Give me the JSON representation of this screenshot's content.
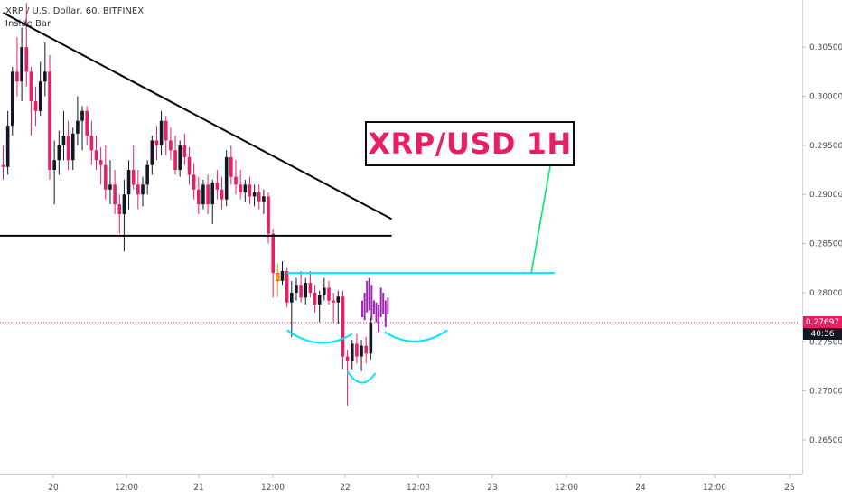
{
  "chart_data": {
    "type": "candlestick",
    "title": "XRP / U.S. Dollar, 60, BITFINEX",
    "indicator": "Inside Bar",
    "annotation": "XRP/USD 1H",
    "ylim": [
      0.2615,
      0.3098
    ],
    "price_ticks": [
      "0.26500",
      "0.27000",
      "0.27500",
      "0.28000",
      "0.28500",
      "0.29000",
      "0.29500",
      "0.30000",
      "0.30500"
    ],
    "time_ticks": [
      "20",
      "12:00",
      "21",
      "12:00",
      "22",
      "12:00",
      "23",
      "12:00",
      "24",
      "12:00",
      "25"
    ],
    "last_price": "0.27697",
    "countdown": "40:36",
    "colors": {
      "up": "#131722",
      "down": "#e91e63",
      "inside_bar": "#f59e0b",
      "projection": "#9c27b0",
      "neckline": "#00e5ff",
      "breakout_arrow": "#00e676",
      "trendline": "#000000",
      "last_price_tag": "#e91e63",
      "countdown_tag": "#131722"
    },
    "candles": [
      [
        0.293,
        0.295,
        0.2915,
        0.2928
      ],
      [
        0.2928,
        0.2985,
        0.292,
        0.297
      ],
      [
        0.297,
        0.303,
        0.296,
        0.3025
      ],
      [
        0.3025,
        0.306,
        0.3,
        0.3015
      ],
      [
        0.3015,
        0.307,
        0.2995,
        0.305
      ],
      [
        0.305,
        0.3095,
        0.301,
        0.3025
      ],
      [
        0.3025,
        0.303,
        0.296,
        0.2995
      ],
      [
        0.2995,
        0.301,
        0.297,
        0.2985
      ],
      [
        0.2985,
        0.3035,
        0.298,
        0.3015
      ],
      [
        0.3015,
        0.3055,
        0.3,
        0.3025
      ],
      [
        0.3025,
        0.3042,
        0.2915,
        0.2925
      ],
      [
        0.2925,
        0.2955,
        0.289,
        0.2935
      ],
      [
        0.2935,
        0.2965,
        0.292,
        0.295
      ],
      [
        0.295,
        0.2985,
        0.2935,
        0.296
      ],
      [
        0.296,
        0.2975,
        0.2925,
        0.2935
      ],
      [
        0.2935,
        0.2968,
        0.2925,
        0.2962
      ],
      [
        0.2962,
        0.3,
        0.295,
        0.2975
      ],
      [
        0.2975,
        0.299,
        0.2945,
        0.2985
      ],
      [
        0.2985,
        0.299,
        0.295,
        0.296
      ],
      [
        0.296,
        0.2975,
        0.293,
        0.2945
      ],
      [
        0.2945,
        0.296,
        0.2925,
        0.2935
      ],
      [
        0.2935,
        0.2948,
        0.291,
        0.293
      ],
      [
        0.293,
        0.295,
        0.2895,
        0.2905
      ],
      [
        0.2905,
        0.2935,
        0.289,
        0.291
      ],
      [
        0.291,
        0.2925,
        0.288,
        0.289
      ],
      [
        0.289,
        0.29,
        0.286,
        0.288
      ],
      [
        0.288,
        0.2915,
        0.2842,
        0.29
      ],
      [
        0.29,
        0.2935,
        0.2885,
        0.2925
      ],
      [
        0.2925,
        0.295,
        0.2905,
        0.291
      ],
      [
        0.291,
        0.2925,
        0.2885,
        0.29
      ],
      [
        0.29,
        0.2918,
        0.2888,
        0.291
      ],
      [
        0.291,
        0.2935,
        0.29,
        0.293
      ],
      [
        0.293,
        0.296,
        0.292,
        0.2955
      ],
      [
        0.2955,
        0.297,
        0.2935,
        0.295
      ],
      [
        0.295,
        0.2985,
        0.294,
        0.2975
      ],
      [
        0.2975,
        0.298,
        0.294,
        0.2955
      ],
      [
        0.2955,
        0.2968,
        0.2935,
        0.2945
      ],
      [
        0.2945,
        0.296,
        0.292,
        0.2925
      ],
      [
        0.2925,
        0.2955,
        0.2918,
        0.295
      ],
      [
        0.295,
        0.2962,
        0.293,
        0.2938
      ],
      [
        0.2938,
        0.2948,
        0.291,
        0.292
      ],
      [
        0.292,
        0.2932,
        0.2895,
        0.2905
      ],
      [
        0.2905,
        0.2918,
        0.288,
        0.289
      ],
      [
        0.289,
        0.2915,
        0.2885,
        0.291
      ],
      [
        0.291,
        0.292,
        0.288,
        0.289
      ],
      [
        0.289,
        0.2915,
        0.287,
        0.2912
      ],
      [
        0.2912,
        0.2925,
        0.2895,
        0.2905
      ],
      [
        0.2905,
        0.2918,
        0.2885,
        0.2895
      ],
      [
        0.2895,
        0.2945,
        0.2888,
        0.2938
      ],
      [
        0.2938,
        0.295,
        0.291,
        0.2918
      ],
      [
        0.2918,
        0.2935,
        0.29,
        0.291
      ],
      [
        0.291,
        0.2925,
        0.2895,
        0.2902
      ],
      [
        0.2902,
        0.2915,
        0.2892,
        0.291
      ],
      [
        0.291,
        0.2918,
        0.289,
        0.2898
      ],
      [
        0.2898,
        0.291,
        0.2888,
        0.2902
      ],
      [
        0.2902,
        0.291,
        0.2885,
        0.2893
      ],
      [
        0.2893,
        0.2905,
        0.288,
        0.2898
      ],
      [
        0.2898,
        0.2902,
        0.285,
        0.286
      ],
      [
        0.286,
        0.2865,
        0.2795,
        0.282
      ],
      [
        0.282,
        0.283,
        0.2795,
        0.2812
      ],
      [
        0.2812,
        0.2832,
        0.2808,
        0.2822
      ],
      [
        0.2822,
        0.2825,
        0.2785,
        0.279
      ],
      [
        0.279,
        0.2812,
        0.2755,
        0.28
      ],
      [
        0.28,
        0.2815,
        0.2792,
        0.2808
      ],
      [
        0.2808,
        0.2822,
        0.279,
        0.2795
      ],
      [
        0.2795,
        0.2815,
        0.2788,
        0.281
      ],
      [
        0.281,
        0.2822,
        0.2795,
        0.28
      ],
      [
        0.28,
        0.2808,
        0.278,
        0.2788
      ],
      [
        0.2788,
        0.2802,
        0.277,
        0.2798
      ],
      [
        0.2798,
        0.2815,
        0.2792,
        0.2805
      ],
      [
        0.2805,
        0.2812,
        0.2788,
        0.2792
      ],
      [
        0.2792,
        0.28,
        0.277,
        0.279
      ],
      [
        0.279,
        0.2802,
        0.2768,
        0.2796
      ],
      [
        0.2796,
        0.2802,
        0.2722,
        0.2735
      ],
      [
        0.2735,
        0.2742,
        0.2685,
        0.273
      ],
      [
        0.273,
        0.2752,
        0.2722,
        0.2748
      ],
      [
        0.2748,
        0.2758,
        0.2728,
        0.2735
      ],
      [
        0.2735,
        0.2752,
        0.272,
        0.2746
      ],
      [
        0.2746,
        0.2755,
        0.2728,
        0.2738
      ],
      [
        0.2738,
        0.2775,
        0.2732,
        0.277
      ]
    ],
    "projection_bars": [
      [
        0.2775,
        0.2792
      ],
      [
        0.2772,
        0.28
      ],
      [
        0.278,
        0.2812
      ],
      [
        0.2782,
        0.2815
      ],
      [
        0.2772,
        0.2808
      ],
      [
        0.2778,
        0.2792
      ],
      [
        0.277,
        0.279
      ],
      [
        0.276,
        0.2788
      ],
      [
        0.2775,
        0.2805
      ],
      [
        0.2778,
        0.28
      ],
      [
        0.2765,
        0.2792
      ],
      [
        0.2778,
        0.2795
      ]
    ],
    "drawings": {
      "descending_trendline": [
        [
          0.3085,
          0
        ],
        [
          0.2875,
          83.5
        ]
      ],
      "support_line": [
        [
          0.2858,
          -2
        ],
        [
          0.2858,
          83.5
        ]
      ],
      "neckline": [
        [
          0.282,
          61
        ],
        [
          0.282,
          118.5
        ]
      ],
      "breakout_arrow": [
        [
          0.282,
          113.5
        ],
        [
          0.294,
          118
        ]
      ],
      "left_shoulder": [
        [
          0.2762,
          61
        ],
        [
          0.2758,
          75
        ]
      ],
      "head": [
        [
          0.272,
          74
        ],
        [
          0.2718,
          80
        ]
      ],
      "right_shoulder": [
        [
          0.276,
          82
        ],
        [
          0.2762,
          95.5
        ]
      ]
    }
  }
}
